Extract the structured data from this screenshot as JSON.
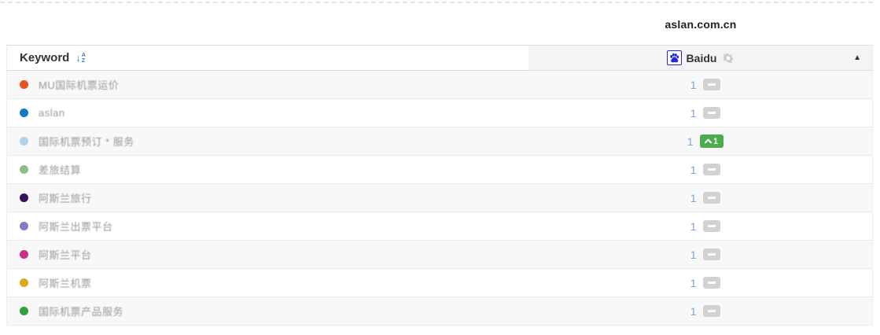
{
  "header": {
    "domain": "aslan.com.cn"
  },
  "table": {
    "keyword_header": "Keyword",
    "sort_icon": "sort-alpha-asc",
    "engine": {
      "name": "Baidu",
      "icon": "baidu-paw",
      "settings_icon": "gear",
      "collapse_icon": "chevron-up",
      "collapse_glyph": "▲"
    },
    "rows": [
      {
        "dot_color": "#e8521d",
        "keyword": "MU国际机票运价",
        "rank": "1",
        "change": "none"
      },
      {
        "dot_color": "#0e7ac4",
        "keyword": "aslan",
        "rank": "1",
        "change": "none"
      },
      {
        "dot_color": "#aed3ea",
        "keyword": "国际机票预订 * 服务",
        "rank": "1",
        "change": "up",
        "change_value": "1"
      },
      {
        "dot_color": "#90bb8e",
        "keyword": "差旅结算",
        "rank": "1",
        "change": "none"
      },
      {
        "dot_color": "#371260",
        "keyword": "阿斯兰旅行",
        "rank": "1",
        "change": "none"
      },
      {
        "dot_color": "#8878c3",
        "keyword": "阿斯兰出票平台",
        "rank": "1",
        "change": "none"
      },
      {
        "dot_color": "#d02d87",
        "keyword": "阿斯兰平台",
        "rank": "1",
        "change": "none"
      },
      {
        "dot_color": "#d9a91c",
        "keyword": "阿斯兰机票",
        "rank": "1",
        "change": "none"
      },
      {
        "dot_color": "#2fa33a",
        "keyword": "国际机票产品服务",
        "rank": "1",
        "change": "none"
      }
    ],
    "colors": {
      "rank_text": "#7aa8dc",
      "no_change_badge": "#d2d2d2",
      "up_badge": "#4bab4e",
      "engine_header_bg": "#f4f4f4",
      "stripe_bg": "#f8f8f8",
      "baidu_blue": "#2526d9"
    }
  }
}
